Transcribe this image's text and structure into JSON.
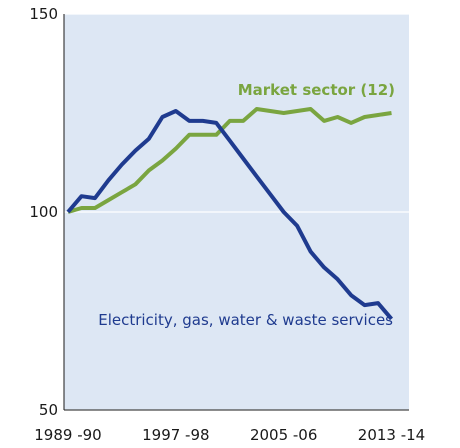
{
  "chart_data": {
    "type": "line",
    "title": "",
    "xlabel": "",
    "ylabel": "",
    "ylim": [
      50,
      150
    ],
    "yticks": [
      50,
      100,
      150
    ],
    "xticks": [
      "1989 -90",
      "1997 -98",
      "2005 -06",
      "2013 -14"
    ],
    "x": [
      1989,
      1990,
      1991,
      1992,
      1993,
      1994,
      1995,
      1996,
      1997,
      1998,
      1999,
      2000,
      2001,
      2002,
      2003,
      2004,
      2005,
      2006,
      2007,
      2008,
      2009,
      2010,
      2011,
      2012,
      2013,
      2014
    ],
    "grid": "horizontal",
    "plot_background": "#dde7f4",
    "series": [
      {
        "name": "Market sector (12)",
        "color": "#7aa540",
        "label_weight": "bold",
        "values": [
          100,
          101,
          101,
          103,
          105,
          107,
          110.5,
          113,
          116,
          119.5,
          119.5,
          119.5,
          123,
          123,
          126,
          125.5,
          125,
          125.5,
          126,
          123,
          124,
          122.5,
          124,
          124.5,
          125,
          null
        ]
      },
      {
        "name": "Electricity, gas, water & waste services",
        "color": "#1f3b8f",
        "label_weight": "normal",
        "values": [
          100,
          104,
          103.5,
          108,
          112,
          115.5,
          118.5,
          124,
          125.5,
          123,
          123,
          122.5,
          118,
          113.5,
          109,
          104.5,
          100,
          96.5,
          90,
          86,
          83,
          79,
          76.5,
          77,
          73,
          null
        ]
      }
    ]
  }
}
